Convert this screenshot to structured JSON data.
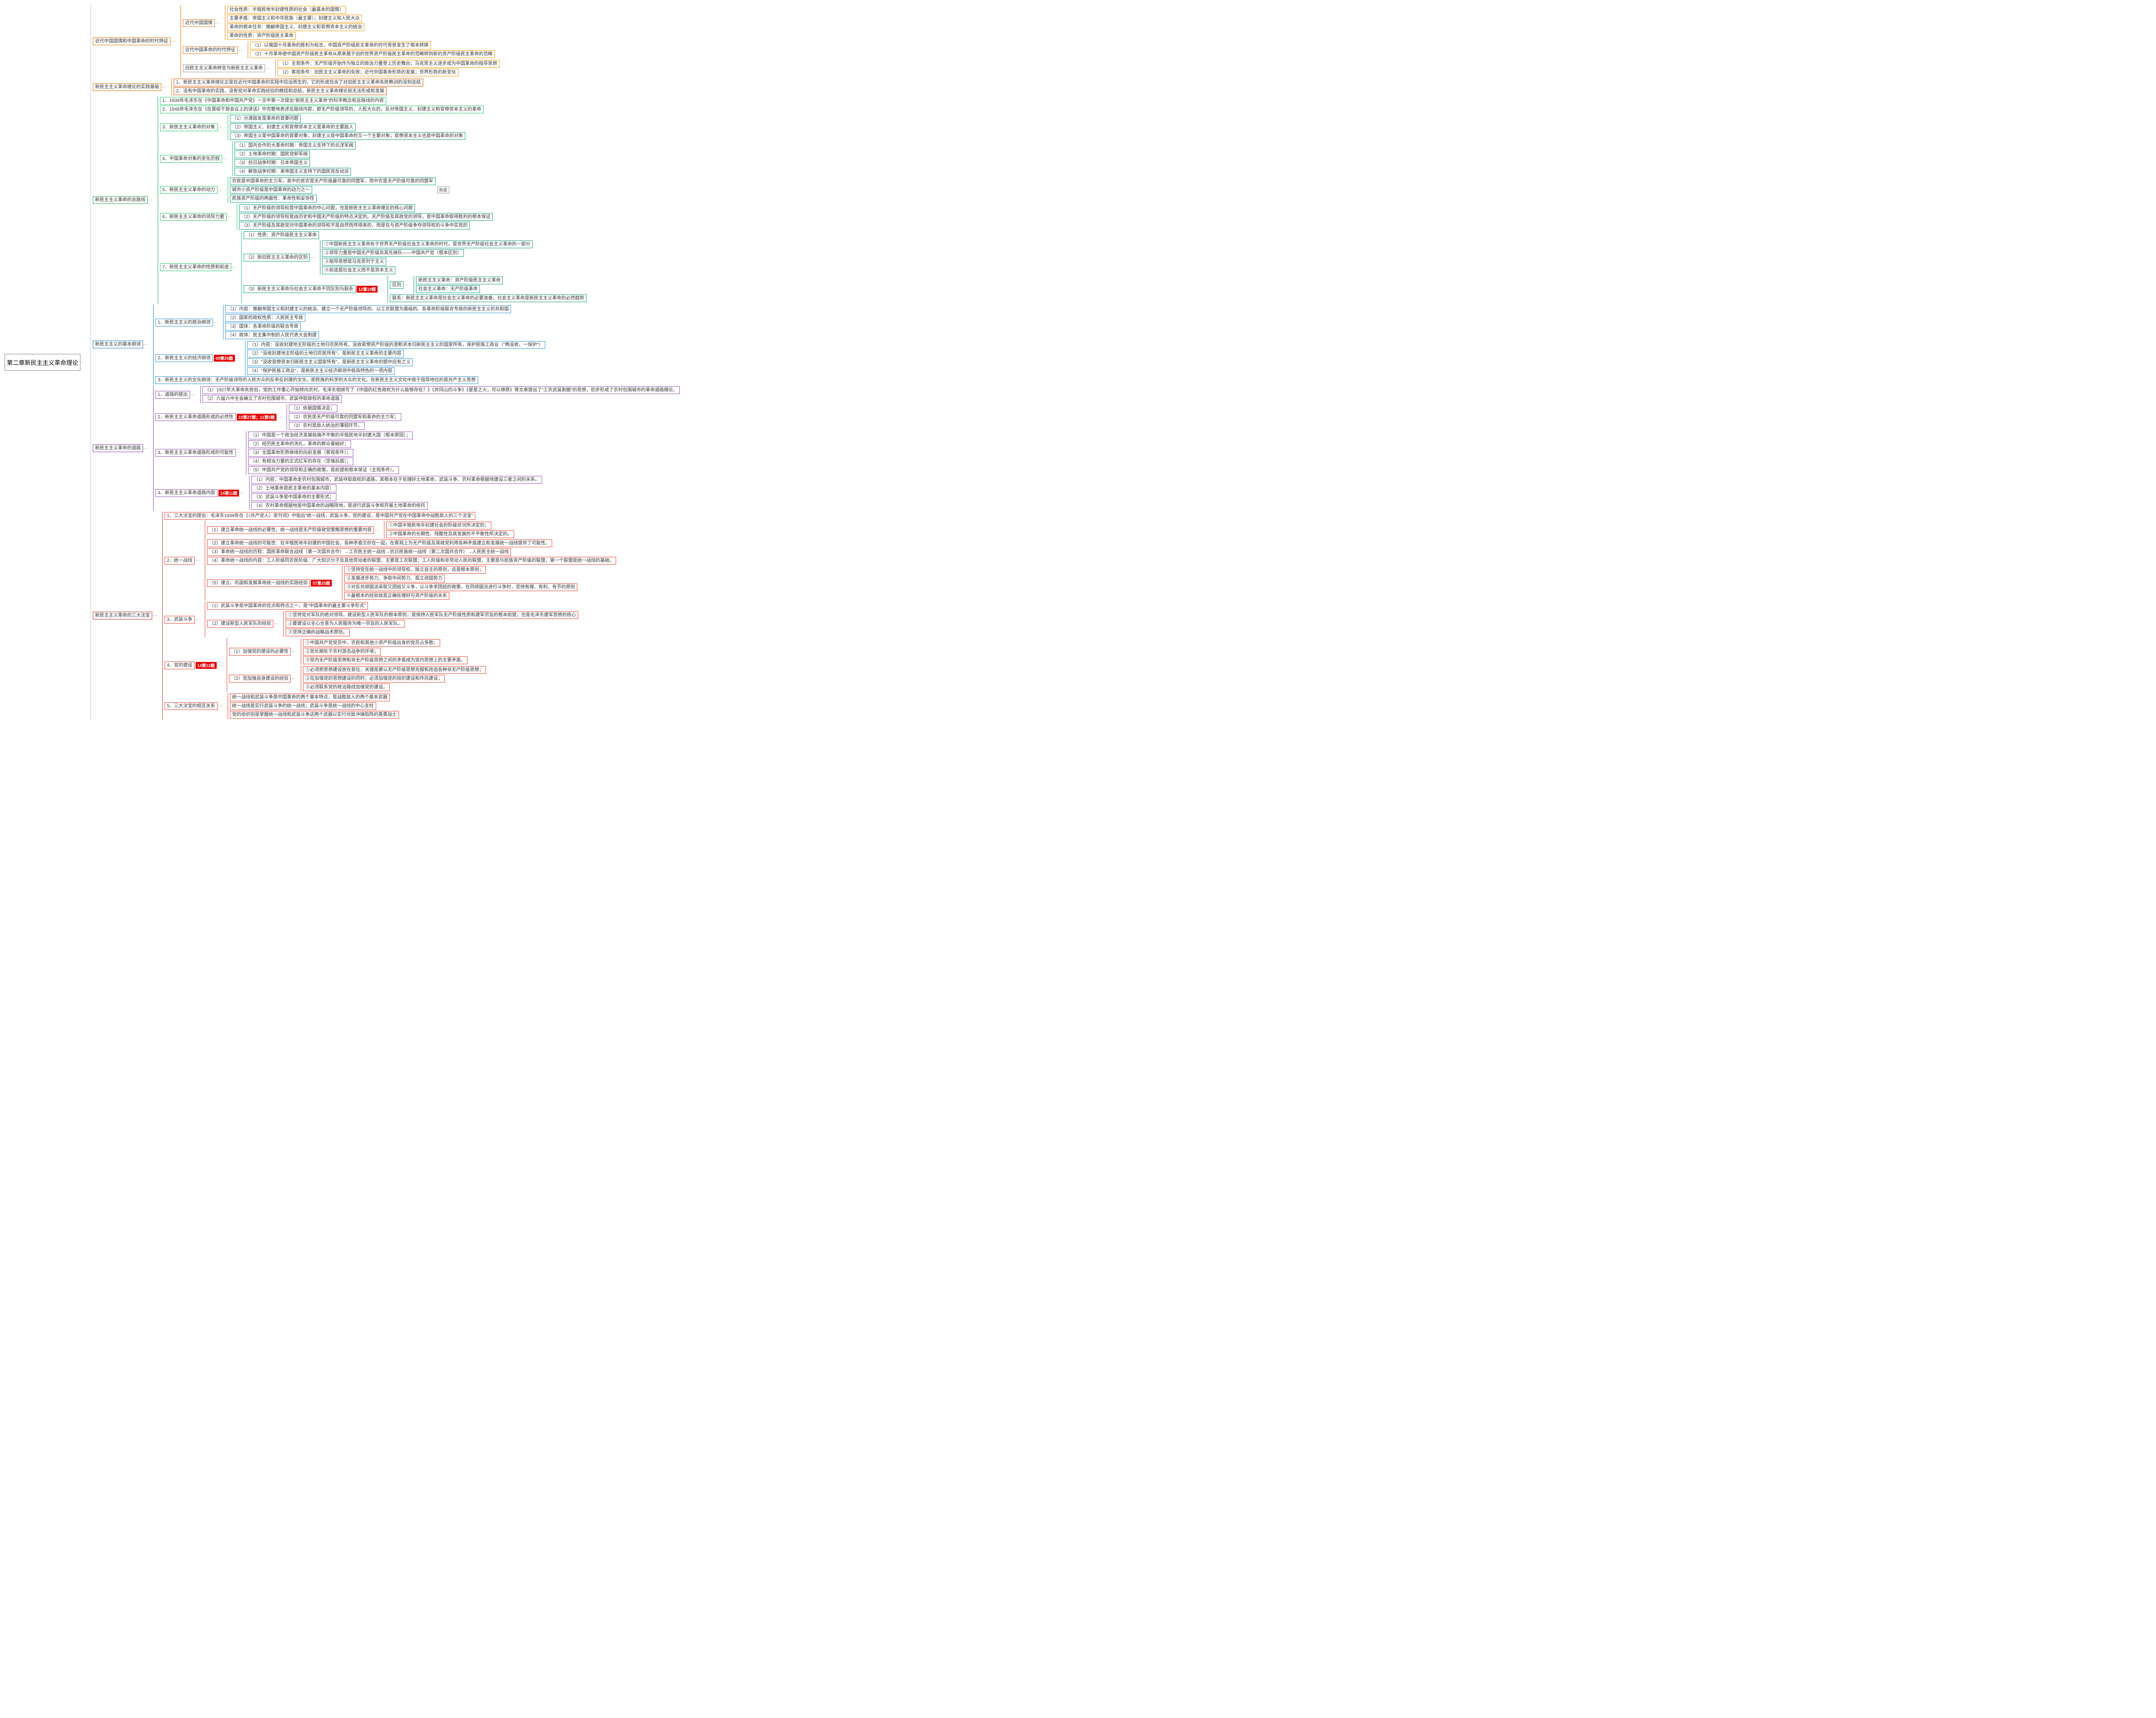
{
  "root": "第二章新民主主义革命理论",
  "badges": {
    "b1": "12第10题",
    "b2": "09第26题",
    "b3": "10第27题；11第5题",
    "b4": "14第11题",
    "b5": "07第25题",
    "b6": "14第12题"
  },
  "note_summary": "概要",
  "colors": {
    "c0": "#999999",
    "c1": "#d97a00",
    "c2": "#e67e22",
    "c3": "#f39c12",
    "c4": "#27ae60",
    "c5": "#2ecc71",
    "c6": "#16a085",
    "c7": "#2980b9",
    "c8": "#3498db",
    "c9": "#8e44ad",
    "c10": "#9b59b6",
    "c11": "#c0392b",
    "c12": "#e74c3c",
    "c13": "#d35400",
    "c14": "#34495e"
  },
  "tree": [
    {
      "t": "近代中国国情和中国革命的时代特征",
      "c": "c1",
      "k": [
        {
          "t": "近代中国国情",
          "c": "c2",
          "k": [
            {
              "t": "社会性质：半殖民地半封建性质的社会（最基本的国情）",
              "c": "c3"
            },
            {
              "t": "主要矛盾：帝国主义和中华民族（最主要）；封建主义和人民大众",
              "c": "c3"
            },
            {
              "t": "革命的根本任务：推翻帝国主义、封建主义和官僚资本主义的统治",
              "c": "c3"
            },
            {
              "t": "革命的性质：资产阶级民主革命",
              "c": "c3"
            }
          ]
        },
        {
          "t": "近代中国革命的时代特征",
          "c": "c2",
          "k": [
            {
              "t": "（1）以俄国十月革命的胜利为标志，中国资产阶级民主革命的时代背景发生了根本转换",
              "c": "c3"
            },
            {
              "t": "（2）十月革命使中国资产阶级民主革命从原来属于旧的世界资产阶级民主革命的范畴转到新的资产阶级民主革命的范畴",
              "c": "c3"
            }
          ]
        },
        {
          "t": "旧民主主义革命转变为新民主主义革命",
          "c": "c0",
          "k": [
            {
              "t": "（1）主观条件：无产阶级开始作为独立的政治力量登上历史舞台；马克思主义逐步成为中国革命的指导思想",
              "c": "c3"
            },
            {
              "t": "（2）客观条件：旧民主主义革命的失败；近代中国革命形势的发展；世界形势的新变化",
              "c": "c3"
            }
          ]
        }
      ]
    },
    {
      "t": "新民主主义革命理论的实践基础",
      "c": "c1",
      "k": [
        {
          "t": "1、新民主主义革命理论正是在近代中国革命的实践中应运而生的，它的形成包含了对旧民主主义革命失败教训的深刻总结",
          "c": "c13"
        },
        {
          "t": "2、没有中国革命的实践，没有党对革命实践经验的概括和总结，新民主主义革命理论就无法形成和发展",
          "c": "c13"
        }
      ]
    },
    {
      "t": "新民主主义革命的总路线",
      "c": "c4",
      "k": [
        {
          "t": "1、1939年毛泽东在《中国革命和中国共产党》一文中第一次提出\"新民主主义革命\"的科学概念和总路线的内容",
          "c": "c5"
        },
        {
          "t": "2、1948年毛泽东在《在晋绥干部会议上的讲话》中完整地表述总路线内容，即无产阶级领导的，人民大众的，反对帝国主义、封建主义和官僚资本主义的革命",
          "c": "c5"
        },
        {
          "t": "3、新民主主义革命的对象",
          "c": "c5",
          "k": [
            {
              "t": "（1）分清敌友是革命的首要问题",
              "c": "c6"
            },
            {
              "t": "（2）帝国主义、封建主义和官僚资本主义是革命的主要敌人",
              "c": "c6"
            },
            {
              "t": "（3）帝国主义是中国革命的首要对象；封建主义是中国革命的又一个主要对象；官僚资本主义也是中国革命的对象",
              "c": "c6"
            }
          ]
        },
        {
          "t": "4、中国革命对象的变化历程",
          "c": "c5",
          "k": [
            {
              "t": "（1）国共合作的大革命时期：帝国主义支持下的北洋军阀",
              "c": "c6"
            },
            {
              "t": "（2）土地革命时期：国民党新军阀",
              "c": "c6"
            },
            {
              "t": "（3）抗日战争时期：日本帝国主义",
              "c": "c6"
            },
            {
              "t": "（4）解放战争时期：美帝国主义支持下的国民党反动派",
              "c": "c6"
            }
          ]
        },
        {
          "t": "5、新民主主义革命的动力",
          "c": "c5",
          "note": "note_summary",
          "k": [
            {
              "t": "农民是中国革命的主力军，其中的贫农是无产阶级最可靠的同盟军，而中农是无产阶级可靠的同盟军",
              "c": "c6"
            },
            {
              "t": "城市小资产阶级是中国革命的动力之一",
              "c": "c6"
            },
            {
              "t": "民族资产阶级的两面性：革命性和妥协性",
              "c": "c6"
            }
          ]
        },
        {
          "t": "6、新民主主义革命的领导力量",
          "c": "c5",
          "k": [
            {
              "t": "（1）无产阶级的领导权是中国革命的中心问题，也是新民主主义革命理论的核心问题",
              "c": "c6"
            },
            {
              "t": "（2）无产阶级的领导权是由历史和中国无产阶级的特点决定的。无产阶级及其政党的领导，是中国革命取得胜利的根本保证",
              "c": "c6"
            },
            {
              "t": "（3）无产阶级及其政党对中国革命的领导权不是自然而然得来的，而是在与资产阶级争夺领导权的斗争中实现的",
              "c": "c6"
            }
          ]
        },
        {
          "t": "7、新民主主义革命的性质和前途",
          "c": "c5",
          "k": [
            {
              "t": "（1）性质：资产阶级民主主义革命",
              "c": "c6"
            },
            {
              "t": "（2）新旧民主主义革命的区别",
              "c": "c6",
              "k": [
                {
                  "t": "①中国新民主主义革命处于世界无产阶级社会主义革命的时代，是世界无产阶级社会主义革命的一部分",
                  "c": "c6"
                },
                {
                  "t": "②领导力量是中国无产阶级及其先锋队——中国共产党（根本区别）",
                  "c": "c6"
                },
                {
                  "t": "③指导思想是马克思列宁主义",
                  "c": "c6"
                },
                {
                  "t": "④前途是社会主义而不是资本主义",
                  "c": "c6"
                }
              ]
            },
            {
              "t": "（3）新民主主义革命与社会主义革命不同区别与联系",
              "c": "c6",
              "badge": "b1",
              "k": [
                {
                  "t": "区别",
                  "c": "c6",
                  "k": [
                    {
                      "t": "新民主主义革命：资产阶级民主主义革命",
                      "c": "c6"
                    },
                    {
                      "t": "社会主义革命：无产阶级革命",
                      "c": "c6"
                    }
                  ]
                },
                {
                  "t": "联系：新民主主义革命是社会主义革命的必要准备，社会主义革命是新民主主义革命的必然趋势",
                  "c": "c6"
                }
              ]
            }
          ]
        }
      ]
    },
    {
      "t": "新民主主义的基本纲领",
      "c": "c7",
      "k": [
        {
          "t": "1、新民主主义的政治纲领",
          "c": "c8",
          "k": [
            {
              "t": "（1）内容：推翻帝国主义和封建主义的统治，建立一个无产阶级领导的、以工农联盟为基础的、各革命阶级联合专政的新民主主义的共和国",
              "c": "c8"
            },
            {
              "t": "（2）国家的政权性质：人民民主专政",
              "c": "c8"
            },
            {
              "t": "（3）国体：各革命阶级的联合专政",
              "c": "c8"
            },
            {
              "t": "（4）政体：民主集中制的人民代表大会制度",
              "c": "c8"
            }
          ]
        },
        {
          "t": "2、新民主主义的经济纲领",
          "c": "c8",
          "badge": "b2",
          "k": [
            {
              "t": "（1）内容：没收封建地主阶级的土地归农民所有，没收官僚资产阶级的垄断资本归新民主主义的国家所有，保护民族工商业（\"两没收，一保护\"）",
              "c": "c8"
            },
            {
              "t": "（2）\"没收封建地主阶级的土地归农民所有\"，是新民主主义革命的主要内容",
              "c": "c8"
            },
            {
              "t": "（3）\"没收官僚资本归新民主主义国家所有\"，是新民主主义革命的题中应有之义",
              "c": "c8"
            },
            {
              "t": "（4）\"保护民族工商业\"，是新民主主义经济纲领中极具特色的一项内容",
              "c": "c8"
            }
          ]
        },
        {
          "t": "3、新民主主义的文化纲领：无产阶级领导的人民大众的反帝反封建的文化，即民族的科学的大众的文化。在新民主主义文化中居于指导地位的是共产主义思想",
          "c": "c8"
        }
      ]
    },
    {
      "t": "新民主主义革命的道路",
      "c": "c9",
      "k": [
        {
          "t": "1、道路的提出",
          "c": "c10",
          "k": [
            {
              "t": "（1）1927年大革命失败后，党的工作重心开始转向农村。毛泽东相继写了《中国的红色政权为什么能够存在？》《井冈山的斗争》《星星之火，可以燎原》等文章提出了\"工农武装割据\"的思想，初步形成了农村包围城市的革命道路理论。",
              "c": "c10"
            },
            {
              "t": "（2）六届六中全会确立了农村包围城市，武装夺取政权的革命道路",
              "c": "c10"
            }
          ]
        },
        {
          "t": "2、新民主主义革命道路形成的必然性",
          "c": "c10",
          "badge": "b3",
          "k": [
            {
              "t": "（1）依据国情决定；",
              "c": "c10"
            },
            {
              "t": "（2）农民是无产阶级可靠的同盟军和革命的主力军；",
              "c": "c10"
            },
            {
              "t": "（3）农村是敌人统治的薄弱环节。",
              "c": "c10"
            }
          ]
        },
        {
          "t": "3、新民主主义革命道路形成的可能性",
          "c": "c10",
          "k": [
            {
              "t": "（1）中国是一个政治经济发展极端不平衡的半殖民地半封建大国（根本原因）；",
              "c": "c10"
            },
            {
              "t": "（2）经历民主革命的洗礼，革命的群众基础好；",
              "c": "c10"
            },
            {
              "t": "（3）全国革命形势继续的向前发展（客观条件）；",
              "c": "c10"
            },
            {
              "t": "（4）有相当力量的正式红军的存在（坚强后盾）；",
              "c": "c10"
            },
            {
              "t": "（5）中国共产党的领导和正确的政策，是前提和根本保证（主观条件）。",
              "c": "c10"
            }
          ]
        },
        {
          "t": "4、新民主主义革命道路内容",
          "c": "c10",
          "badge": "b4",
          "k": [
            {
              "t": "（1）内容：中国革命走农村包围城市，武装夺取政权的道路，其根本在于处理好土地革命、武装斗争、农村革命根据地建设三者之间的关系。",
              "c": "c10"
            },
            {
              "t": "（2）土地革命是民主革命的基本内容；",
              "c": "c10"
            },
            {
              "t": "（3）武装斗争是中国革命的主要形式；",
              "c": "c10"
            },
            {
              "t": "（4）农村革命根据地是中国革命的战略阵地，是进行武装斗争和开展土地革命的依托",
              "c": "c10"
            }
          ]
        }
      ]
    },
    {
      "t": "新民主主义革命的三大法宝",
      "c": "c11",
      "k": [
        {
          "t": "1、三大法宝的提出：毛泽东1939年在《〈共产党人〉发刊词》中指出\"统一战线，武装斗争，党的建设，是中国共产党在中国革命中战胜敌人的三个法宝\"",
          "c": "c12"
        },
        {
          "t": "2、统一战线",
          "c": "c12",
          "k": [
            {
              "t": "（1）建立革命统一战线的必要性，统一战线是无产阶级政党策略思想的重要内容",
              "c": "c12",
              "k": [
                {
                  "t": "①中国半殖民地半封建社会的阶级状况所决定的；",
                  "c": "c12"
                },
                {
                  "t": "②中国革命的长期性、残酷性及其发展的不平衡性所决定的。",
                  "c": "c12"
                }
              ]
            },
            {
              "t": "（2）建立革命统一战线的可能性：在半殖民地半封建的中国社会，各种矛盾交织在一起，在客观上为无产阶级及其政党利用各种矛盾建立和发展统一战线提供了可能性。",
              "c": "c12"
            },
            {
              "t": "（3）革命统一战线的历程：国民革命联合战线（第一次国共合作）→工农民主统一战线→抗日民族统一战线（第二次国共合作）→人民民主统一战线",
              "c": "c12"
            },
            {
              "t": "（4）革命统一战线的内容：工人阶级同农民阶级、广大知识分子及其他劳动者的联盟，主要是工农联盟；工人阶级和非劳动人民的联盟，主要是与民族资产阶级的联盟；第一个联盟是统一战线的基础。",
              "c": "c12"
            },
            {
              "t": "（5）建立、巩固和发展革命统一战线的实践经验",
              "c": "c12",
              "badge": "b5",
              "k": [
                {
                  "t": "①坚持党在统一战线中的领导权，独立自主的原则，这是根本原则；",
                  "c": "c12"
                },
                {
                  "t": "②发展进步势力、争取中间势力、孤立顽固势力",
                  "c": "c12"
                },
                {
                  "t": "③对反共顽固派采取又团结又斗争，以斗争求团结的政策，在同顽固派进行斗争时，坚持有理、有利、有节的原则",
                  "c": "c12"
                },
                {
                  "t": "④最根本的经验就是正确处理好与资产阶级的关系",
                  "c": "c12"
                }
              ]
            }
          ]
        },
        {
          "t": "3、武装斗争",
          "c": "c12",
          "k": [
            {
              "t": "（1）武装斗争是中国革命的优点和特点之一，是\"中国革命的最主要斗争形式\"",
              "c": "c12"
            },
            {
              "t": "（2）建设新型人民军队的经验",
              "c": "c12",
              "k": [
                {
                  "t": "①坚持党对军队的绝对领导。建设新型人民军队的根本原则，是保持人民军队无产阶级性质和建军宗旨的根本前提，也是毛泽东建军思想的核心",
                  "c": "c12"
                },
                {
                  "t": "②要建设以全心全意为人民服务为唯一宗旨的人民军队。",
                  "c": "c12"
                },
                {
                  "t": "③坚持正确的战略战术原则。",
                  "c": "c12"
                }
              ]
            }
          ]
        },
        {
          "t": "4、党的建设",
          "c": "c12",
          "badge": "b6",
          "k": [
            {
              "t": "（1）加强党的建设的必要性",
              "c": "c12",
              "k": [
                {
                  "t": "①中国共产党党员中，农民和其他小资产阶级出身的党员占多数；",
                  "c": "c12"
                },
                {
                  "t": "②党长期处于农村游击战争的环境；",
                  "c": "c12"
                },
                {
                  "t": "③党内无产阶级思想和非无产阶级思想之间的矛盾成为党内思想上的主要矛盾。",
                  "c": "c12"
                }
              ]
            },
            {
              "t": "（2）党加强自身建设的经验",
              "c": "c12",
              "k": [
                {
                  "t": "①必须把思想建设放在首位，关键是要以无产阶级思想克服和改造各种非无产阶级思想；",
                  "c": "c12"
                },
                {
                  "t": "②在加强党的思想建设的同时，必须加强党的组织建设和作风建设；",
                  "c": "c12"
                },
                {
                  "t": "③必须联系党的政治路线加强党的建设。",
                  "c": "c12"
                }
              ]
            }
          ]
        },
        {
          "t": "5、三大法宝的相互关系",
          "c": "c12",
          "k": [
            {
              "t": "统一战线和武装斗争是中国革命的两个基本特点，是战胜敌人的两个基本武器",
              "c": "c12"
            },
            {
              "t": "统一战线是实行武装斗争的统一战线；武装斗争是统一战线的中心支柱",
              "c": "c12"
            },
            {
              "t": "党的组织则是掌握统一战线和武装斗争这两个武器以实行对敌冲锋陷阵的英勇战士",
              "c": "c12"
            }
          ]
        }
      ]
    }
  ]
}
